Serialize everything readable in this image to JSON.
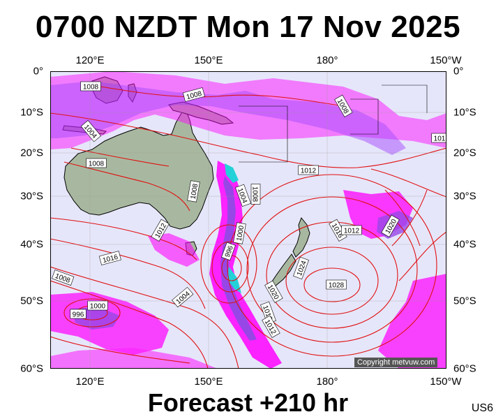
{
  "title": "0700 NZDT Mon 17 Nov 2025",
  "footer": "Forecast +210 hr",
  "model_code": "US6",
  "copyright": "Copyright metvuw.com",
  "axes": {
    "lon_top": [
      "120°E",
      "150°E",
      "180°",
      "150°W"
    ],
    "lon_bottom": [
      "120°E",
      "150°E",
      "180°",
      "150°W"
    ],
    "lat_left": [
      "0°",
      "10°S",
      "20°S",
      "30°S",
      "40°S",
      "50°S",
      "60°S"
    ],
    "lat_right": [
      "0°",
      "10°S",
      "20°S",
      "30°S",
      "40°S",
      "50°S",
      "60°S"
    ]
  },
  "colors": {
    "isobar": "#e01010",
    "ocean": "#e6e6fa",
    "land": "#a8b8a0",
    "precip_light": "#ff00ff",
    "precip_mid": "#8a2be2",
    "precip_heavy": "#00ced1"
  },
  "isobar_labels": [
    {
      "text": "1008",
      "name": "isobar-label-1008-north-indonesia"
    },
    {
      "text": "1008",
      "name": "isobar-label-1008-new-guinea"
    },
    {
      "text": "1008",
      "name": "isobar-label-1008-pacific"
    },
    {
      "text": "1004",
      "name": "isobar-label-1004-timor"
    },
    {
      "text": "1008",
      "name": "isobar-label-1008-wa"
    },
    {
      "text": "1008",
      "name": "isobar-label-1008-inland"
    },
    {
      "text": "1012",
      "name": "isobar-label-1012-coral-sea"
    },
    {
      "text": "1004",
      "name": "isobar-label-1004-tasman"
    },
    {
      "text": "1008",
      "name": "isobar-label-1008-tasman"
    },
    {
      "text": "1000",
      "name": "isobar-label-1000-tasman"
    },
    {
      "text": "996",
      "name": "isobar-label-996-tasman"
    },
    {
      "text": "1012",
      "name": "isobar-label-1012-sa"
    },
    {
      "text": "1016",
      "name": "isobar-label-1016-bight"
    },
    {
      "text": "1008",
      "name": "isobar-label-1008-southwest"
    },
    {
      "text": "1000",
      "name": "isobar-label-1000-southern-low"
    },
    {
      "text": "996",
      "name": "isobar-label-996-southern-low"
    },
    {
      "text": "1004",
      "name": "isobar-label-1004-southern"
    },
    {
      "text": "1024",
      "name": "isobar-label-1024-nz"
    },
    {
      "text": "1020",
      "name": "isobar-label-1020-nz"
    },
    {
      "text": "1016",
      "name": "isobar-label-1016-south"
    },
    {
      "text": "1012",
      "name": "isobar-label-1012-south"
    },
    {
      "text": "1028",
      "name": "isobar-label-1028-high"
    },
    {
      "text": "1016",
      "name": "isobar-label-1016-east"
    },
    {
      "text": "1012",
      "name": "isobar-label-1012-east"
    },
    {
      "text": "1020",
      "name": "isobar-label-1020-east"
    },
    {
      "text": "101",
      "name": "isobar-label-101-edge"
    }
  ]
}
